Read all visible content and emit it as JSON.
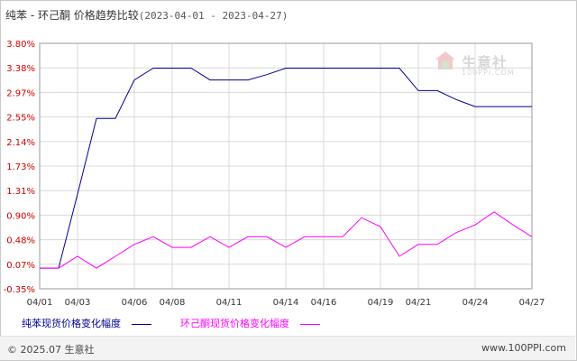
{
  "header": {
    "title": "纯苯 - 环己酮 价格趋势比较",
    "date_range": "(2023-04-01 - 2023-04-27)"
  },
  "watermark": {
    "name": "生意社",
    "url": "100PPI.COM"
  },
  "footer": {
    "copyright": "© 2025.07 生意社",
    "site": "www.100PPI.com"
  },
  "colors": {
    "series_1": "#00008b",
    "series_2": "#ff00ff",
    "grid": "#d8d8d8",
    "axis_text": "#cc0000"
  },
  "chart_data": {
    "type": "line",
    "title": "纯苯 - 环己酮 价格趋势比较",
    "x": [
      "04/01",
      "04/02",
      "04/03",
      "04/04",
      "04/05",
      "04/06",
      "04/07",
      "04/08",
      "04/09",
      "04/10",
      "04/11",
      "04/12",
      "04/13",
      "04/14",
      "04/15",
      "04/16",
      "04/17",
      "04/18",
      "04/19",
      "04/20",
      "04/21",
      "04/22",
      "04/23",
      "04/24",
      "04/25",
      "04/26",
      "04/27"
    ],
    "x_tick_labels": [
      "04/01",
      "04/03",
      "04/06",
      "04/08",
      "04/11",
      "04/14",
      "04/16",
      "04/19",
      "04/21",
      "04/24",
      "04/27"
    ],
    "y_tick_labels": [
      "3.80%",
      "3.38%",
      "2.97%",
      "2.55%",
      "2.14%",
      "1.73%",
      "1.31%",
      "0.90%",
      "0.48%",
      "0.07%",
      "-0.35%"
    ],
    "ylim": [
      -0.35,
      3.8
    ],
    "grid": true,
    "legend_position": "bottom",
    "series": [
      {
        "name": "纯苯现货价格变化幅度",
        "values": [
          0.0,
          0.0,
          1.25,
          2.53,
          2.53,
          3.18,
          3.38,
          3.38,
          3.38,
          3.18,
          3.18,
          3.18,
          3.27,
          3.38,
          3.38,
          3.38,
          3.38,
          3.38,
          3.38,
          3.38,
          3.0,
          3.0,
          2.85,
          2.73,
          2.73,
          2.73,
          2.73
        ]
      },
      {
        "name": "环己酮现货价格变化幅度",
        "values": [
          0.0,
          0.0,
          0.2,
          0.0,
          0.2,
          0.4,
          0.53,
          0.35,
          0.35,
          0.53,
          0.35,
          0.53,
          0.53,
          0.35,
          0.53,
          0.53,
          0.53,
          0.85,
          0.7,
          0.2,
          0.4,
          0.4,
          0.6,
          0.73,
          0.95,
          0.73,
          0.53
        ]
      }
    ]
  }
}
